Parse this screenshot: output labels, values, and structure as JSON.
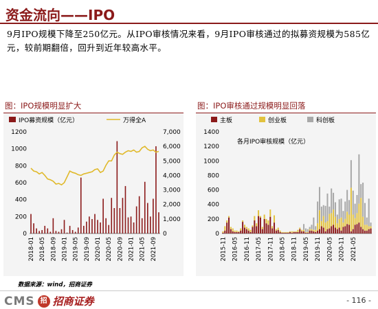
{
  "header": {
    "title": "资金流向——IPO"
  },
  "summary": "9月IPO规模下降至250亿元。从IPO审核情况来看，9月IPO审核通过的拟募资规模为585亿元，较前期翻倍，回升到近年较高水平。",
  "source": "数据来源：wind，招商证券",
  "footer": {
    "brand": "CMS",
    "seal": "招",
    "brand_cn": "招商证券",
    "page": "- 116 -"
  },
  "colors": {
    "accent": "#8b1a1a",
    "ipo_bar": "#8b1a1a",
    "wande_line": "#e0b92a",
    "main_board": "#8b1a1a",
    "gem_board": "#e2c23e",
    "star_board": "#a8a8a8"
  },
  "chart_data": [
    {
      "type": "bar",
      "title": "图：IPO规模明显扩大",
      "legend": [
        "IPO募资规模（亿元）",
        "万得全A"
      ],
      "x_ticks": [
        "2018-01",
        "2018-05",
        "2018-09",
        "2019-01",
        "2019-05",
        "2019-09",
        "2020-01",
        "2020-05",
        "2020-09",
        "2021-01",
        "2021-05",
        "2021-09"
      ],
      "ylim_left": [
        0,
        1200
      ],
      "yticks_left": [
        "0",
        "200",
        "400",
        "600",
        "800",
        "1000",
        "1200"
      ],
      "ylim_right": [
        0,
        7000
      ],
      "yticks_right": [
        "0",
        "1,000",
        "2,000",
        "3,000",
        "4,000",
        "5,000",
        "6,000",
        "7,000"
      ],
      "series": [
        {
          "name": "IPO募资规模（亿元）",
          "kind": "bar",
          "axis": "left",
          "values": [
            230,
            120,
            60,
            30,
            40,
            90,
            60,
            20,
            180,
            30,
            20,
            50,
            160,
            10,
            90,
            40,
            20,
            70,
            660,
            90,
            140,
            200,
            170,
            230,
            160,
            130,
            410,
            180,
            100,
            420,
            300,
            1090,
            300,
            420,
            560,
            190,
            200,
            130,
            320,
            440,
            180,
            610,
            360,
            200,
            410,
            1030,
            250
          ]
        },
        {
          "name": "万得全A",
          "kind": "line",
          "axis": "right",
          "values": [
            4500,
            4300,
            4250,
            4100,
            4200,
            4000,
            3750,
            3700,
            3600,
            3400,
            3450,
            3350,
            3500,
            3900,
            4300,
            4200,
            4150,
            4050,
            4000,
            4100,
            4150,
            4200,
            4250,
            4400,
            4450,
            4200,
            4300,
            4700,
            5000,
            5000,
            5400,
            5600,
            5500,
            5450,
            5600,
            5700,
            5650,
            5750,
            5600,
            5650,
            5900,
            6000,
            5800,
            5700,
            5750,
            5600,
            5650
          ]
        }
      ]
    },
    {
      "type": "bar",
      "title": "图：IPO审核通过规模明显回落",
      "legend": [
        "主板",
        "创业板",
        "科创板"
      ],
      "subtitle": "各月IPO审核规模（亿元）",
      "x_ticks": [
        "2015-11",
        "2016-05",
        "2016-11",
        "2017-05",
        "2017-11",
        "2018-05",
        "2018-11",
        "2019-05",
        "2019-11",
        "2020-05",
        "2020-11",
        "2021-05"
      ],
      "ylim": [
        0,
        1400
      ],
      "yticks": [
        "0",
        "200",
        "400",
        "600",
        "800",
        "1000",
        "1200",
        "1400"
      ],
      "series": [
        {
          "name": "主板",
          "values": [
            10,
            40,
            150,
            220,
            60,
            30,
            20,
            20,
            20,
            40,
            160,
            80,
            60,
            40,
            20,
            90,
            180,
            100,
            240,
            220,
            60,
            200,
            140,
            120,
            230,
            70,
            150,
            40,
            50,
            20,
            10,
            10,
            10,
            10,
            20,
            10,
            20,
            20,
            20,
            60,
            30,
            30,
            10,
            10,
            40,
            40,
            30,
            20,
            40,
            60,
            100,
            80,
            30,
            60,
            70,
            100,
            120,
            80,
            60,
            80,
            40,
            90,
            100,
            130,
            120,
            30,
            60,
            120,
            130,
            150,
            90,
            60,
            40,
            40,
            60,
            70
          ]
        },
        {
          "name": "创业板",
          "values": [
            20,
            60,
            30,
            20,
            30,
            40,
            20,
            20,
            10,
            30,
            20,
            40,
            30,
            30,
            30,
            20,
            60,
            40,
            80,
            20,
            30,
            60,
            60,
            60,
            100,
            30,
            100,
            20,
            30,
            20,
            10,
            10,
            10,
            10,
            10,
            20,
            10,
            10,
            30,
            20,
            20,
            20,
            10,
            10,
            20,
            20,
            20,
            30,
            100,
            260,
            70,
            160,
            120,
            110,
            200,
            180,
            210,
            150,
            80,
            120,
            180,
            60,
            100,
            170,
            140,
            600,
            200,
            90,
            150,
            260,
            400,
            170,
            80,
            80,
            40,
            30
          ]
        },
        {
          "name": "科创板",
          "values": [
            0,
            0,
            0,
            0,
            0,
            0,
            0,
            0,
            0,
            0,
            0,
            0,
            0,
            0,
            0,
            0,
            0,
            0,
            0,
            0,
            0,
            0,
            0,
            0,
            0,
            0,
            0,
            0,
            0,
            0,
            0,
            0,
            0,
            0,
            0,
            0,
            0,
            0,
            0,
            0,
            0,
            80,
            50,
            40,
            30,
            60,
            170,
            50,
            300,
            320,
            200,
            150,
            230,
            380,
            100,
            340,
            230,
            200,
            120,
            270,
            260,
            160,
            240,
            300,
            200,
            380,
            330,
            200,
            250,
            680,
            190,
            470,
            300,
            100,
            380,
            50
          ]
        }
      ]
    }
  ]
}
